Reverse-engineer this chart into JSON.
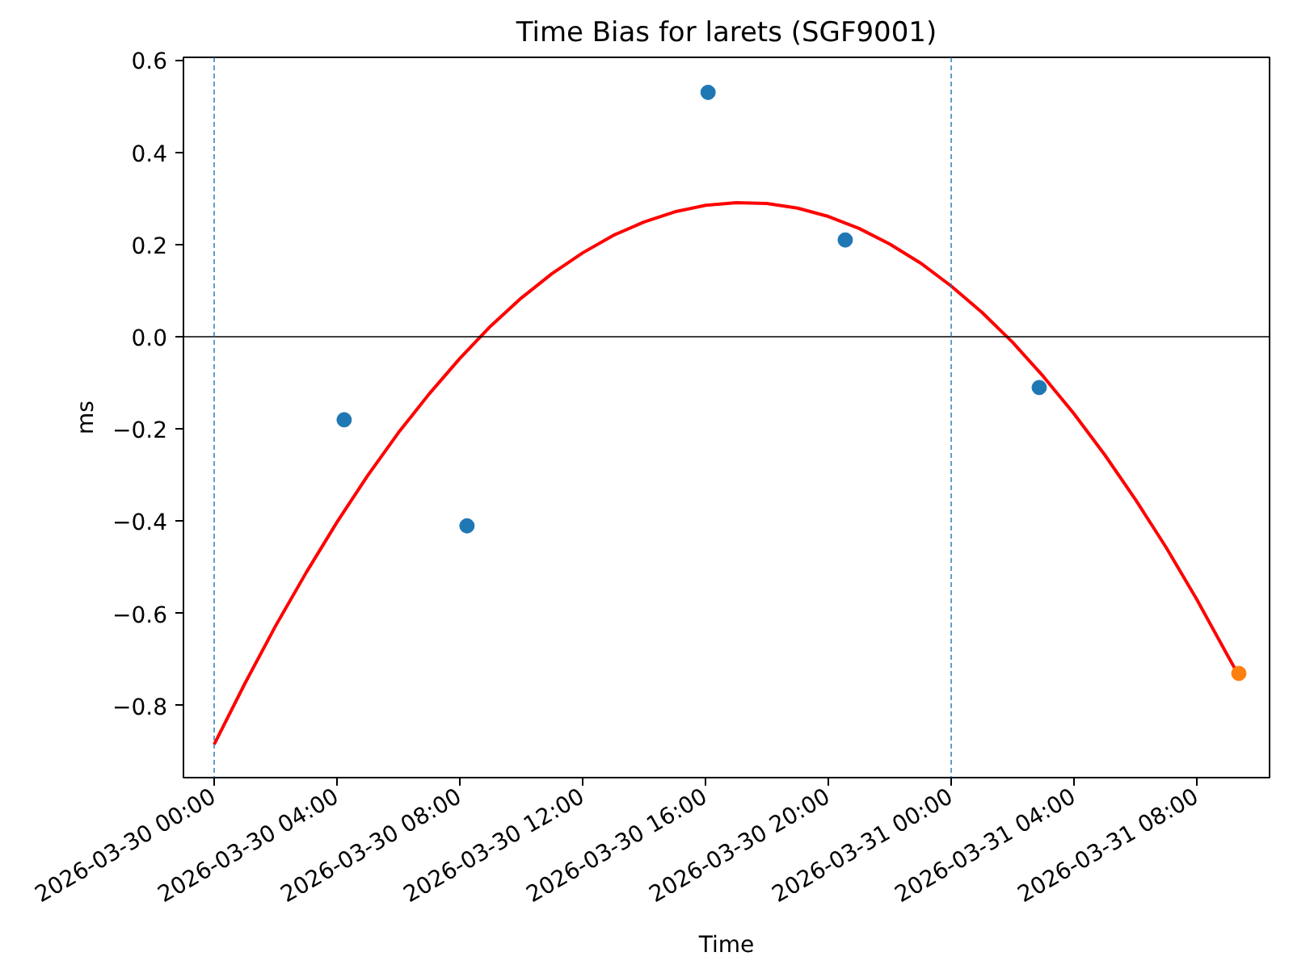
{
  "chart_data": {
    "type": "scatter",
    "title": "Time Bias for larets (SGF9001)",
    "xlabel": "Time",
    "ylabel": "ms",
    "xlim": [
      "2026-03-29T23:00",
      "2026-03-31T10:22"
    ],
    "ylim": [
      -0.956,
      0.606
    ],
    "xticks": [
      {
        "value": "2026-03-30T00:00",
        "label": "2026-03-30 00:00"
      },
      {
        "value": "2026-03-30T04:00",
        "label": "2026-03-30 04:00"
      },
      {
        "value": "2026-03-30T08:00",
        "label": "2026-03-30 08:00"
      },
      {
        "value": "2026-03-30T12:00",
        "label": "2026-03-30 12:00"
      },
      {
        "value": "2026-03-30T16:00",
        "label": "2026-03-30 16:00"
      },
      {
        "value": "2026-03-30T20:00",
        "label": "2026-03-30 20:00"
      },
      {
        "value": "2026-03-31T00:00",
        "label": "2026-03-31 00:00"
      },
      {
        "value": "2026-03-31T04:00",
        "label": "2026-03-31 04:00"
      },
      {
        "value": "2026-03-31T08:00",
        "label": "2026-03-31 08:00"
      }
    ],
    "yticks": [
      {
        "value": -0.8,
        "label": "−0.8"
      },
      {
        "value": -0.6,
        "label": "−0.6"
      },
      {
        "value": -0.4,
        "label": "−0.4"
      },
      {
        "value": -0.2,
        "label": "−0.2"
      },
      {
        "value": 0,
        "label": "0.0"
      },
      {
        "value": 0.2,
        "label": "0.2"
      },
      {
        "value": 0.4,
        "label": "0.4"
      },
      {
        "value": 0.6,
        "label": "0.6"
      }
    ],
    "grid": false,
    "marker": "circle",
    "series": [
      {
        "color": "#1f77b4",
        "x": [
          "2026-03-30T04:14",
          "2026-03-30T08:14",
          "2026-03-30T16:05",
          "2026-03-30T20:33",
          "2026-03-31T02:52"
        ],
        "values": [
          -0.18,
          -0.41,
          0.53,
          0.21,
          -0.11
        ]
      },
      {
        "color": "#ff7f0e",
        "x": [
          "2026-03-31T09:22"
        ],
        "values": [
          -0.73
        ]
      },
      {
        "type": "line",
        "marker": "none",
        "color": "#ff0000",
        "x": [
          "2026-03-30T00:00",
          "2026-03-30T01:00",
          "2026-03-30T02:00",
          "2026-03-30T03:00",
          "2026-03-30T04:00",
          "2026-03-30T05:00",
          "2026-03-30T06:00",
          "2026-03-30T07:00",
          "2026-03-30T08:00",
          "2026-03-30T09:00",
          "2026-03-30T10:00",
          "2026-03-30T11:00",
          "2026-03-30T12:00",
          "2026-03-30T13:00",
          "2026-03-30T14:00",
          "2026-03-30T15:00",
          "2026-03-30T16:00",
          "2026-03-30T17:00",
          "2026-03-30T18:00",
          "2026-03-30T19:00",
          "2026-03-30T20:00",
          "2026-03-30T21:00",
          "2026-03-30T22:00",
          "2026-03-30T23:00",
          "2026-03-31T00:00",
          "2026-03-31T01:00",
          "2026-03-31T02:00",
          "2026-03-31T03:00",
          "2026-03-31T04:00",
          "2026-03-31T05:00",
          "2026-03-31T06:00",
          "2026-03-31T07:00",
          "2026-03-31T08:00",
          "2026-03-31T09:00",
          "2026-03-31T09:22"
        ],
        "values": [
          -0.884,
          -0.752,
          -0.627,
          -0.511,
          -0.402,
          -0.301,
          -0.208,
          -0.124,
          -0.047,
          0.023,
          0.084,
          0.137,
          0.182,
          0.22,
          0.249,
          0.271,
          0.285,
          0.291,
          0.289,
          0.279,
          0.261,
          0.235,
          0.201,
          0.16,
          0.11,
          0.053,
          -0.012,
          -0.086,
          -0.167,
          -0.256,
          -0.353,
          -0.457,
          -0.57,
          -0.691,
          -0.735
        ]
      }
    ],
    "ref_lines": [
      {
        "axis": "y",
        "value": 0,
        "color": "#000000",
        "line_style": "solid"
      },
      {
        "axis": "x",
        "value": "2026-03-30T00:00",
        "color": "#1f77b4",
        "line_style": "dashed"
      },
      {
        "axis": "x",
        "value": "2026-03-31T00:00",
        "color": "#1f77b4",
        "line_style": "dashed"
      }
    ]
  }
}
